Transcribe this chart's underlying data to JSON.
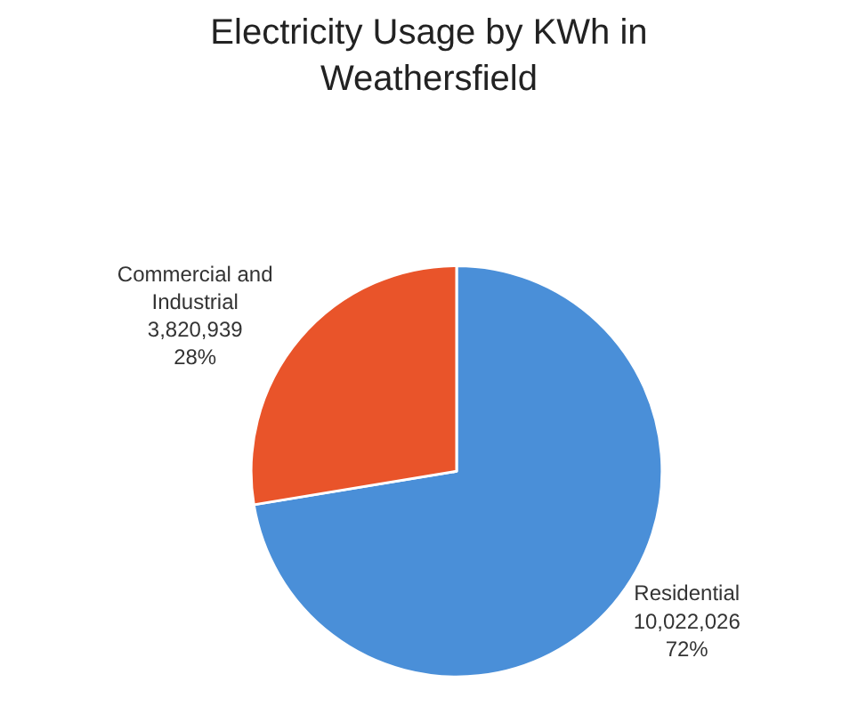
{
  "chart_data": {
    "type": "pie",
    "title": "Electricity Usage by KWh in Weathersfield",
    "categories": [
      "Residential",
      "Commercial and Industrial"
    ],
    "values": [
      10022026,
      3820939
    ],
    "value_labels": [
      "10,022,026\n72%",
      "3,820,939\n28%"
    ],
    "colors": [
      "#4a8fd8",
      "#e9542a"
    ],
    "legend": false
  }
}
